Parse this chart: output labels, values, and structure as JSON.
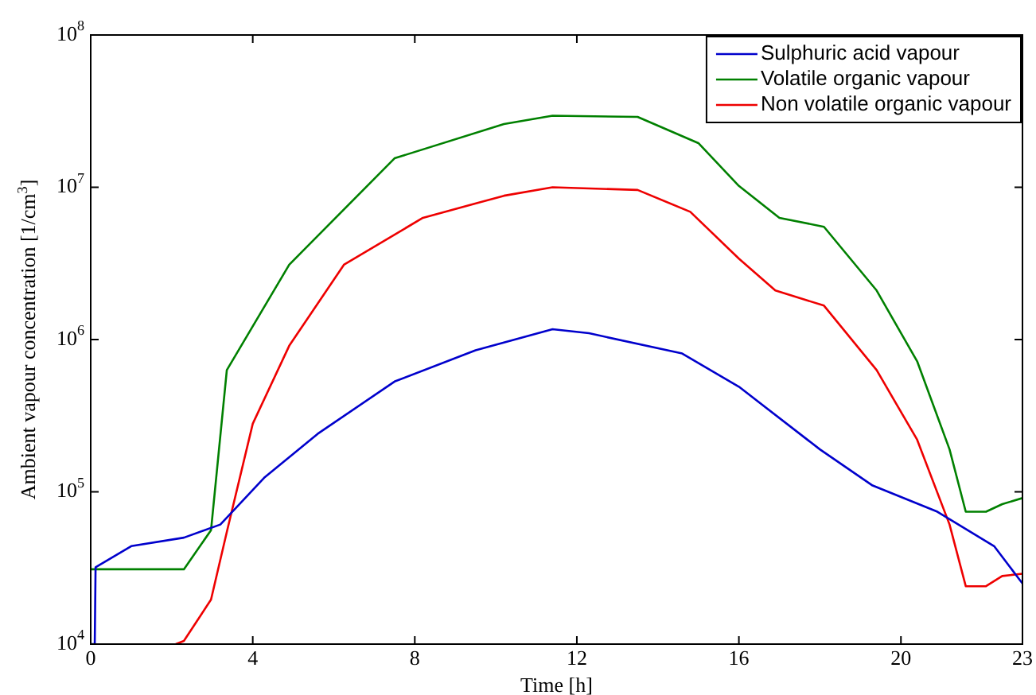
{
  "chart_data": {
    "type": "line",
    "xlabel": "Time [h]",
    "ylabel": "Ambient vapour concentration [1/cm$^{3}$]",
    "log": "y",
    "grid": false,
    "legend": "top right",
    "marker": "none",
    "line_style": "solid",
    "xlim": [
      0,
      23
    ],
    "xticks": [
      0,
      4,
      8,
      12,
      16,
      20,
      23
    ],
    "ylim": [
      10000,
      100000000
    ],
    "yticks": [
      {
        "value": 10000,
        "label": "10$^{4}$"
      },
      {
        "value": 100000,
        "label": "10$^{5}$"
      },
      {
        "value": 1000000,
        "label": "10$^{6}$"
      },
      {
        "value": 10000000,
        "label": "10$^{7}$"
      },
      {
        "value": 100000000,
        "label": "10$^{8}$"
      }
    ],
    "series": [
      {
        "name": "Sulphuric acid vapour",
        "color": "#0000cc",
        "x": [
          0,
          0.1,
          0.12,
          1.0,
          2.3,
          3.2,
          4.3,
          5.6,
          7.5,
          9.5,
          11.4,
          12.3,
          14.6,
          16,
          18,
          19.3,
          20.9,
          22.3,
          23
        ],
        "values": [
          10000,
          10000,
          32000,
          44000,
          50000,
          61000,
          125000,
          240000,
          530000,
          850000,
          1170000,
          1100000,
          810000,
          490000,
          190000,
          110000,
          74000,
          44000,
          25000
        ]
      },
      {
        "name": "Volatile organic vapour",
        "color": "#008000",
        "x": [
          0,
          2.3,
          2.97,
          3.36,
          4.9,
          7.5,
          10.2,
          11.4,
          13.5,
          15,
          16,
          17,
          18.1,
          19.4,
          20.4,
          21.2,
          21.6,
          22.1,
          22.5,
          23
        ],
        "values": [
          31000,
          31000,
          56000,
          630000,
          3100000,
          15500000,
          26000000,
          29500000,
          29000000,
          19500000,
          10200000,
          6300000,
          5500000,
          2100000,
          720000,
          190000,
          74000,
          74000,
          83000,
          91000
        ]
      },
      {
        "name": "Non volatile organic vapour",
        "color": "#ee0000",
        "x": [
          2.1,
          2.3,
          2.97,
          3.37,
          4.0,
          4.9,
          6.25,
          8.2,
          10.2,
          11.4,
          13.5,
          14.8,
          16,
          16.9,
          18.1,
          19.4,
          20.4,
          21.2,
          21.6,
          22.1,
          22.5,
          23
        ],
        "values": [
          10000,
          10500,
          19600,
          56000,
          280000,
          910000,
          3100000,
          6300000,
          8800000,
          10000000,
          9600000,
          6900000,
          3400000,
          2100000,
          1670000,
          630000,
          220000,
          61000,
          24000,
          24000,
          28000,
          29000
        ]
      }
    ]
  }
}
